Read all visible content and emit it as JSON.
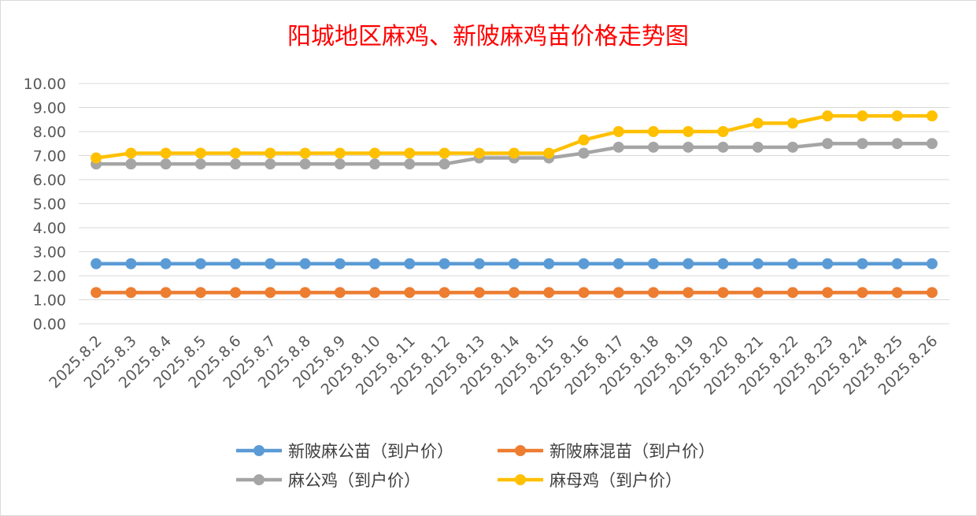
{
  "chart_data": {
    "type": "line",
    "title": "阳城地区麻鸡、新陂麻鸡苗价格走势图",
    "categories": [
      "2025.8.2",
      "2025.8.3",
      "2025.8.4",
      "2025.8.5",
      "2025.8.6",
      "2025.8.7",
      "2025.8.8",
      "2025.8.9",
      "2025.8.10",
      "2025.8.11",
      "2025.8.12",
      "2025.8.13",
      "2025.8.14",
      "2025.8.15",
      "2025.8.16",
      "2025.8.17",
      "2025.8.18",
      "2025.8.19",
      "2025.8.20",
      "2025.8.21",
      "2025.8.22",
      "2025.8.23",
      "2025.8.24",
      "2025.8.25",
      "2025.8.26"
    ],
    "ylim": [
      0,
      10
    ],
    "yticks": [
      "0.00",
      "1.00",
      "2.00",
      "3.00",
      "4.00",
      "5.00",
      "6.00",
      "7.00",
      "8.00",
      "9.00",
      "10.00"
    ],
    "grid": true,
    "legend_position": "bottom",
    "series": [
      {
        "name": "新陂麻公苗（到户价）",
        "color": "#5b9bd5",
        "values": [
          2.5,
          2.5,
          2.5,
          2.5,
          2.5,
          2.5,
          2.5,
          2.5,
          2.5,
          2.5,
          2.5,
          2.5,
          2.5,
          2.5,
          2.5,
          2.5,
          2.5,
          2.5,
          2.5,
          2.5,
          2.5,
          2.5,
          2.5,
          2.5,
          2.5
        ]
      },
      {
        "name": "新陂麻混苗（到户价）",
        "color": "#ed7d31",
        "values": [
          1.3,
          1.3,
          1.3,
          1.3,
          1.3,
          1.3,
          1.3,
          1.3,
          1.3,
          1.3,
          1.3,
          1.3,
          1.3,
          1.3,
          1.3,
          1.3,
          1.3,
          1.3,
          1.3,
          1.3,
          1.3,
          1.3,
          1.3,
          1.3,
          1.3
        ]
      },
      {
        "name": "麻公鸡（到户价）",
        "color": "#a5a5a5",
        "values": [
          6.65,
          6.65,
          6.65,
          6.65,
          6.65,
          6.65,
          6.65,
          6.65,
          6.65,
          6.65,
          6.65,
          6.9,
          6.9,
          6.9,
          7.1,
          7.35,
          7.35,
          7.35,
          7.35,
          7.35,
          7.35,
          7.5,
          7.5,
          7.5,
          7.5
        ]
      },
      {
        "name": "麻母鸡（到户价）",
        "color": "#ffc000",
        "values": [
          6.9,
          7.1,
          7.1,
          7.1,
          7.1,
          7.1,
          7.1,
          7.1,
          7.1,
          7.1,
          7.1,
          7.1,
          7.1,
          7.1,
          7.65,
          8.0,
          8.0,
          8.0,
          8.0,
          8.35,
          8.35,
          8.65,
          8.65,
          8.65,
          8.65
        ]
      }
    ]
  }
}
